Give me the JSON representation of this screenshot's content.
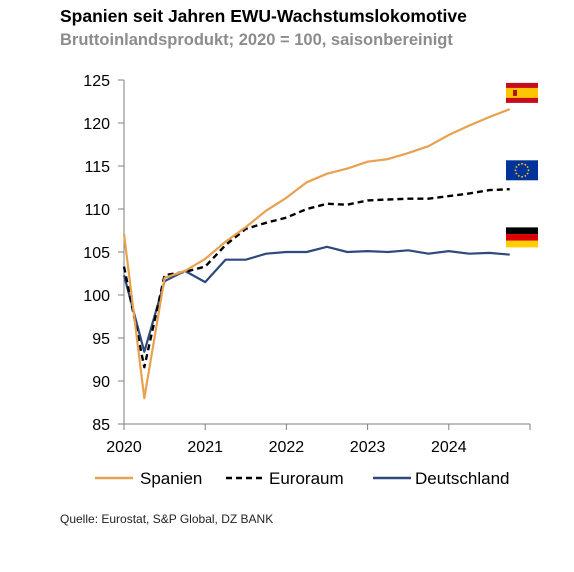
{
  "title": "Spanien seit Jahren EWU-Wachstumslokomotive",
  "subtitle": "Bruttoinlandsprodukt; 2020 = 100, saisonbereinigt",
  "source": "Quelle: Eurostat, S&P Global, DZ BANK",
  "colors": {
    "spanien": "#E8A14E",
    "euroraum": "#000000",
    "deutschland": "#2E4A7D",
    "axis": "#7f7f7f"
  },
  "chart_data": {
    "type": "line",
    "x_start": "2020",
    "x_end": "2024 Q4",
    "x_ticks": [
      "2020",
      "2021",
      "2022",
      "2023",
      "2024"
    ],
    "ylim": [
      85,
      125
    ],
    "y_ticks": [
      "85",
      "90",
      "95",
      "100",
      "105",
      "110",
      "115",
      "120",
      "125"
    ],
    "grid": false,
    "legend_position": "bottom",
    "flag_icons": [
      "spain-flag-icon",
      "eu-flag-icon",
      "germany-flag-icon"
    ],
    "x": [
      "2020 Q1",
      "2020 Q2",
      "2020 Q3",
      "2020 Q4",
      "2021 Q1",
      "2021 Q2",
      "2021 Q3",
      "2021 Q4",
      "2022 Q1",
      "2022 Q2",
      "2022 Q3",
      "2022 Q4",
      "2023 Q1",
      "2023 Q2",
      "2023 Q3",
      "2023 Q4",
      "2024 Q1",
      "2024 Q2",
      "2024 Q3",
      "2024 Q4"
    ],
    "series": [
      {
        "name": "Spanien",
        "style": "solid",
        "color": "#E8A14E",
        "values": [
          107.1,
          88.0,
          102.0,
          102.8,
          104.2,
          106.2,
          107.9,
          109.8,
          111.3,
          113.1,
          114.1,
          114.7,
          115.5,
          115.8,
          116.5,
          117.3,
          118.6,
          119.7,
          120.7,
          121.6
        ]
      },
      {
        "name": "Euroraum",
        "style": "dashed",
        "color": "#000000",
        "values": [
          103.3,
          91.6,
          102.3,
          102.7,
          103.3,
          105.8,
          107.7,
          108.4,
          109.0,
          110.0,
          110.6,
          110.5,
          111.0,
          111.1,
          111.2,
          111.2,
          111.5,
          111.8,
          112.2,
          112.3
        ]
      },
      {
        "name": "Deutschland",
        "style": "solid",
        "color": "#2E4A7D",
        "values": [
          102.3,
          93.4,
          101.6,
          102.8,
          101.5,
          104.1,
          104.1,
          104.8,
          105.0,
          105.0,
          105.6,
          105.0,
          105.1,
          105.0,
          105.2,
          104.8,
          105.1,
          104.8,
          104.9,
          104.7
        ]
      }
    ]
  }
}
